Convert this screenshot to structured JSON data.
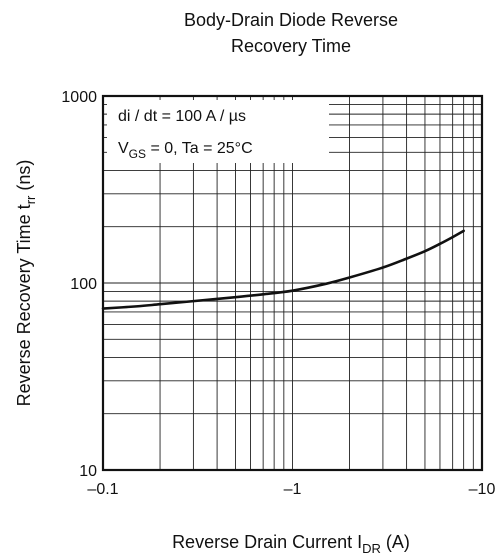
{
  "chart_data": {
    "type": "line",
    "title": [
      "Body-Drain Diode Reverse",
      "Recovery Time"
    ],
    "xlabel": {
      "text": "Reverse Drain Current",
      "symbol": "I",
      "symbol_sub": "DR",
      "unit": "(A)"
    },
    "ylabel": {
      "text": "Reverse Recovery Time",
      "symbol": "t",
      "symbol_sub": "rr",
      "unit": "(ns)"
    },
    "x_scale": "log",
    "y_scale": "log",
    "x_direction": "reversed-negative",
    "xlim": [
      -0.1,
      -10
    ],
    "ylim": [
      10,
      1000
    ],
    "x_ticks": [
      {
        "value": -0.1,
        "label": "–0.1"
      },
      {
        "value": -1,
        "label": "–1"
      },
      {
        "value": -10,
        "label": "–10"
      }
    ],
    "y_ticks": [
      {
        "value": 10,
        "label": "10"
      },
      {
        "value": 100,
        "label": "100"
      },
      {
        "value": 1000,
        "label": "1000"
      }
    ],
    "grid": true,
    "annotations": [
      {
        "parts": [
          {
            "t": "di / dt = 100 A / µs"
          }
        ]
      },
      {
        "parts": [
          {
            "t": "V"
          },
          {
            "t": "GS",
            "sub": true
          },
          {
            "t": " = 0, Ta = 25°C"
          }
        ]
      }
    ],
    "series": [
      {
        "x": [
          -0.1,
          -0.15,
          -0.2,
          -0.3,
          -0.5,
          -0.7,
          -1,
          -1.5,
          -2,
          -3,
          -4,
          -5,
          -6,
          -7,
          -8
        ],
        "y": [
          73,
          75,
          77,
          80,
          84,
          87,
          91,
          99,
          107,
          121,
          135,
          148,
          162,
          176,
          190
        ]
      }
    ]
  }
}
